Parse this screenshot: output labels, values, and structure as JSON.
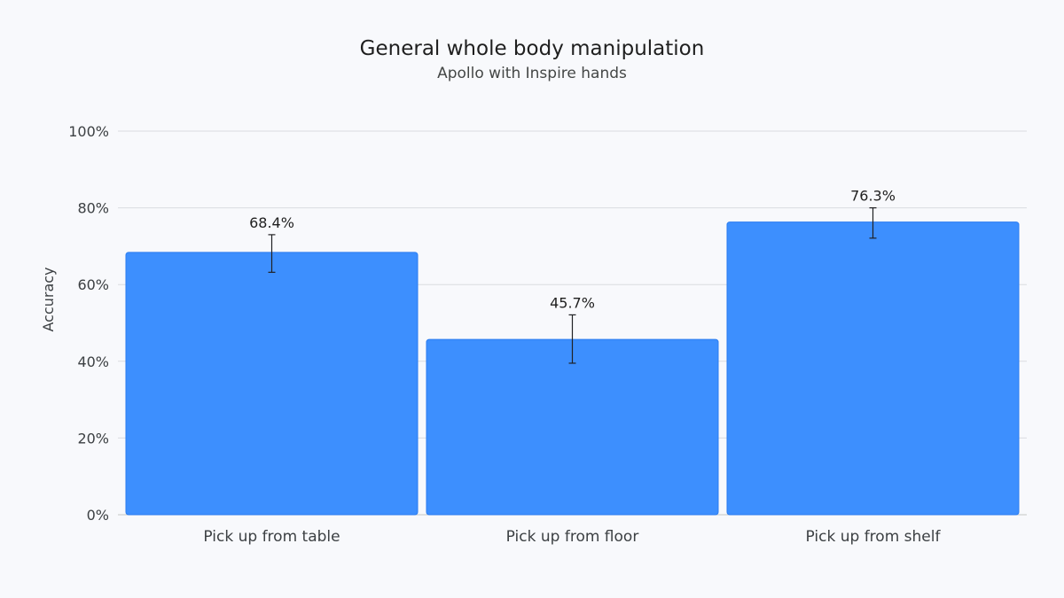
{
  "chart_data": {
    "type": "bar",
    "title": "General whole body manipulation",
    "subtitle": "Apollo with Inspire hands",
    "xlabel": "",
    "ylabel": "Accuracy",
    "categories": [
      "Pick up from table",
      "Pick up from floor",
      "Pick up from shelf"
    ],
    "values": [
      68.4,
      45.7,
      76.3
    ],
    "value_labels": [
      "68.4%",
      "45.7%",
      "76.3%"
    ],
    "error_low": [
      63.2,
      39.5,
      72.1
    ],
    "error_high": [
      73.0,
      52.1,
      80.0
    ],
    "ylim": [
      0,
      100
    ],
    "yticks": [
      0,
      20,
      40,
      60,
      80,
      100
    ],
    "ytick_labels": [
      "0%",
      "20%",
      "40%",
      "60%",
      "80%",
      "100%"
    ],
    "grid": true,
    "legend": "none",
    "colors": {
      "bar_fill": "#3d8ffe",
      "bar_stroke": "#2b7cf0",
      "background": "#f8f9fc"
    }
  }
}
